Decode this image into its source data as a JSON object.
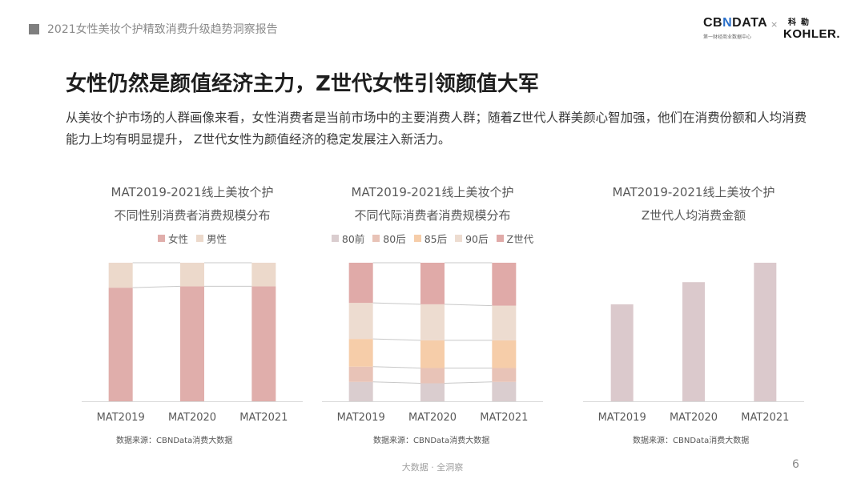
{
  "header": {
    "report_title": "2021女性美妆个护精致消费升级趋势洞察报告",
    "logo_cbndata_pre": "CB",
    "logo_cbndata_x": "N",
    "logo_cbndata_post": "DATA",
    "logo_cbndata_sub": "第一财经商业数据中心",
    "logo_times": "×",
    "logo_kohler_cn": "科勒",
    "logo_kohler": "KOHLER."
  },
  "page": {
    "heading": "女性仍然是颜值经济主力，Z世代女性引领颜值大军",
    "intro": "从美妆个护市场的人群画像来看，女性消费者是当前市场中的主要消费人群；随着Z世代人群美颜心智加强，他们在消费份额和人均消费能力上均有明显提升， Z世代女性为颜值经济的稳定发展注入新活力。",
    "footer_tagline": "大数据 · 全洞察",
    "page_number": "6"
  },
  "chart_data": [
    {
      "type": "bar",
      "stacked": true,
      "normalized": true,
      "title_line1": "MAT2019-2021线上美妆个护",
      "title_line2": "不同性别消费者消费规模分布",
      "categories": [
        "MAT2019",
        "MAT2020",
        "MAT2021"
      ],
      "series": [
        {
          "name": "女性",
          "color": "#e0aeab",
          "values": [
            0.82,
            0.83,
            0.83
          ]
        },
        {
          "name": "男性",
          "color": "#ecd9cb",
          "values": [
            0.18,
            0.17,
            0.17
          ]
        }
      ],
      "ylim": [
        0,
        1
      ],
      "source": "数据来源：CBNData消费大数据"
    },
    {
      "type": "bar",
      "stacked": true,
      "normalized": true,
      "title_line1": "MAT2019-2021线上美妆个护",
      "title_line2": "不同代际消费者消费规模分布",
      "categories": [
        "MAT2019",
        "MAT2020",
        "MAT2021"
      ],
      "series": [
        {
          "name": "80前",
          "color": "#dacdcf",
          "values": [
            0.14,
            0.13,
            0.14
          ]
        },
        {
          "name": "80后",
          "color": "#e8c3b7",
          "values": [
            0.11,
            0.11,
            0.1
          ]
        },
        {
          "name": "85后",
          "color": "#f6cda9",
          "values": [
            0.2,
            0.2,
            0.2
          ]
        },
        {
          "name": "90后",
          "color": "#eddcd0",
          "values": [
            0.26,
            0.26,
            0.25
          ]
        },
        {
          "name": "Z世代",
          "color": "#e0aaa8",
          "values": [
            0.29,
            0.3,
            0.31
          ]
        }
      ],
      "ylim": [
        0,
        1
      ],
      "source": "数据来源：CBNData消费大数据"
    },
    {
      "type": "bar",
      "stacked": false,
      "title_line1": "MAT2019-2021线上美妆个护",
      "title_line2": "Z世代人均消费金额",
      "categories": [
        "MAT2019",
        "MAT2020",
        "MAT2021"
      ],
      "series": [
        {
          "color": "#dbc9cc",
          "values": [
            0.7,
            0.86,
            1.0
          ]
        }
      ],
      "ylim": [
        0,
        1
      ],
      "source": "数据来源：CBNData消费大数据"
    }
  ]
}
